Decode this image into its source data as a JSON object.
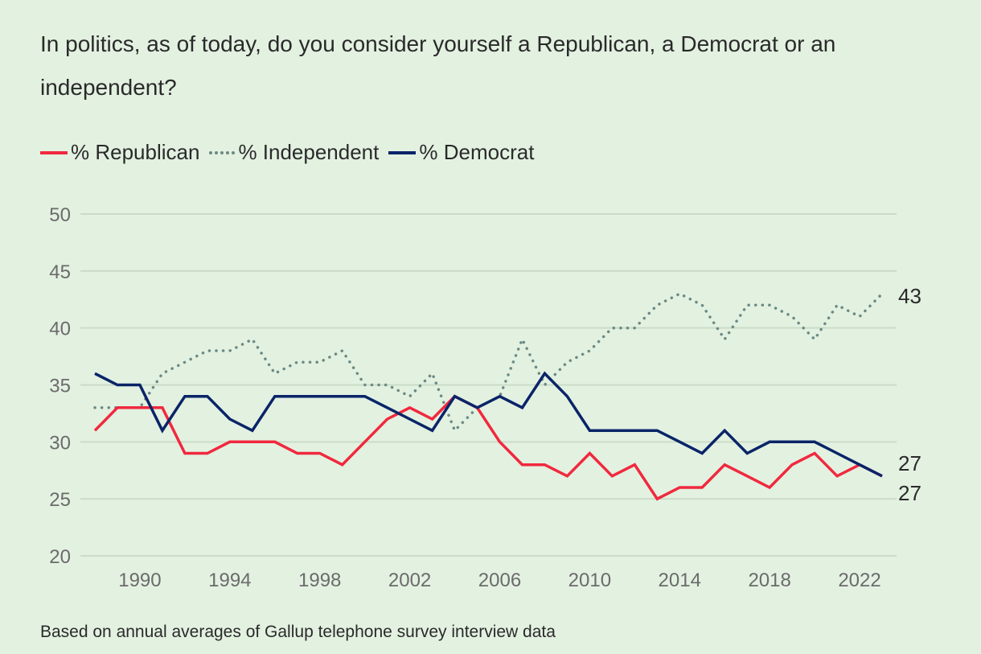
{
  "chart_data": {
    "type": "line",
    "title": "In politics, as of today, do you consider yourself a Republican, a Democrat or an independent?",
    "footnote": "Based on annual averages of Gallup telephone survey interview data",
    "xlabel": "",
    "ylabel": "",
    "ylim": [
      20,
      50
    ],
    "xlim": [
      1988,
      2023
    ],
    "yticks": [
      20,
      25,
      30,
      35,
      40,
      45,
      50
    ],
    "xticks": [
      1990,
      1994,
      1998,
      2002,
      2006,
      2010,
      2014,
      2018,
      2022
    ],
    "grid": true,
    "legend_position": "top-left",
    "x": [
      1988,
      1989,
      1990,
      1991,
      1992,
      1993,
      1994,
      1995,
      1996,
      1997,
      1998,
      1999,
      2000,
      2001,
      2002,
      2003,
      2004,
      2005,
      2006,
      2007,
      2008,
      2009,
      2010,
      2011,
      2012,
      2013,
      2014,
      2015,
      2016,
      2017,
      2018,
      2019,
      2020,
      2021,
      2022,
      2023
    ],
    "series": [
      {
        "name": "% Republican",
        "color": "#f0293e",
        "style": "solid",
        "values": [
          31,
          33,
          33,
          33,
          29,
          29,
          30,
          30,
          30,
          29,
          29,
          28,
          30,
          32,
          33,
          32,
          34,
          33,
          30,
          28,
          28,
          27,
          29,
          27,
          28,
          25,
          26,
          26,
          28,
          27,
          26,
          28,
          29,
          27,
          28,
          27
        ],
        "end_label": "27"
      },
      {
        "name": "% Independent",
        "color": "#6b8a84",
        "style": "dotted",
        "values": [
          33,
          33,
          33,
          36,
          37,
          38,
          38,
          39,
          36,
          37,
          37,
          38,
          35,
          35,
          34,
          36,
          31,
          33,
          34,
          39,
          35,
          37,
          38,
          40,
          40,
          42,
          43,
          42,
          39,
          42,
          42,
          41,
          39,
          42,
          41,
          43
        ],
        "end_label": "43"
      },
      {
        "name": "% Democrat",
        "color": "#0a2468",
        "style": "solid",
        "values": [
          36,
          35,
          35,
          31,
          34,
          34,
          32,
          31,
          34,
          34,
          34,
          34,
          34,
          33,
          32,
          31,
          34,
          33,
          34,
          33,
          36,
          34,
          31,
          31,
          31,
          31,
          30,
          29,
          31,
          29,
          30,
          30,
          30,
          29,
          28,
          27
        ],
        "end_label": "27"
      }
    ]
  },
  "legend": {
    "items": [
      {
        "label": "% Republican"
      },
      {
        "label": "% Independent"
      },
      {
        "label": "% Democrat"
      }
    ]
  }
}
